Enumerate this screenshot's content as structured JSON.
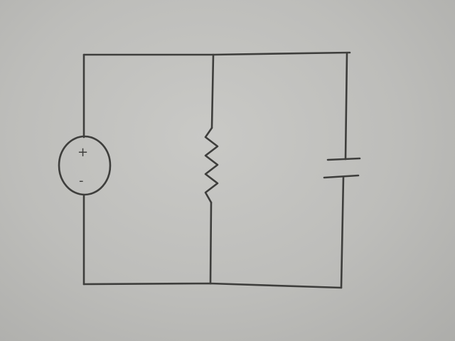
{
  "circuit": {
    "components": [
      {
        "type": "voltage-source",
        "polarity_top": "+",
        "polarity_bottom": "-"
      },
      {
        "type": "resistor"
      },
      {
        "type": "capacitor"
      }
    ],
    "configuration": "parallel",
    "colors": {
      "paper": "#c4c4c1",
      "ink": "#3e3e3c"
    }
  }
}
